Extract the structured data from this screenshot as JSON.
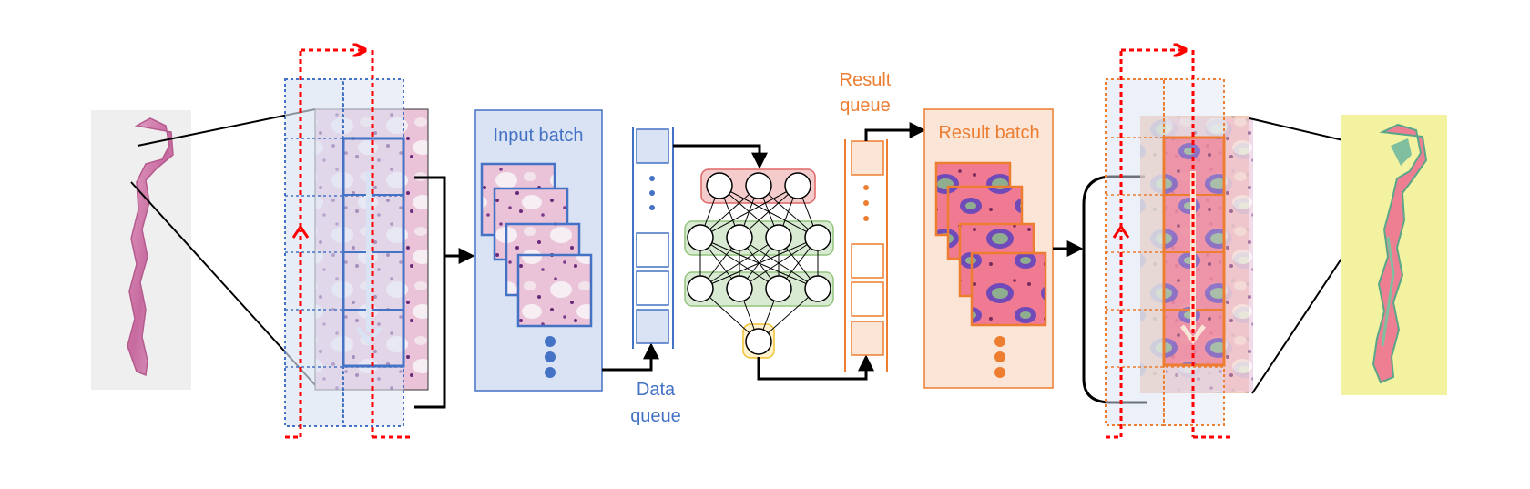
{
  "labels": {
    "input_batch": "Input batch",
    "data_queue_line1": "Data",
    "data_queue_line2": "queue",
    "result_queue_line1": "Result",
    "result_queue_line2": "queue",
    "result_batch": "Result batch"
  },
  "colors": {
    "input_blue": "#4472c4",
    "input_fill": "#dae3f3",
    "result_orange": "#ed7d31",
    "result_fill": "#fbe5d6",
    "scan_red": "#ff0000",
    "nn_red_fill": "#f4cccc",
    "nn_green_fill": "#d9ead3",
    "nn_yellow_fill": "#fff2cc",
    "slide_yellow": "#f2f2a0"
  },
  "icons": {
    "tissue": "histology-slide-thumbnail",
    "network": "neural-network",
    "queue": "fifo-queue"
  }
}
